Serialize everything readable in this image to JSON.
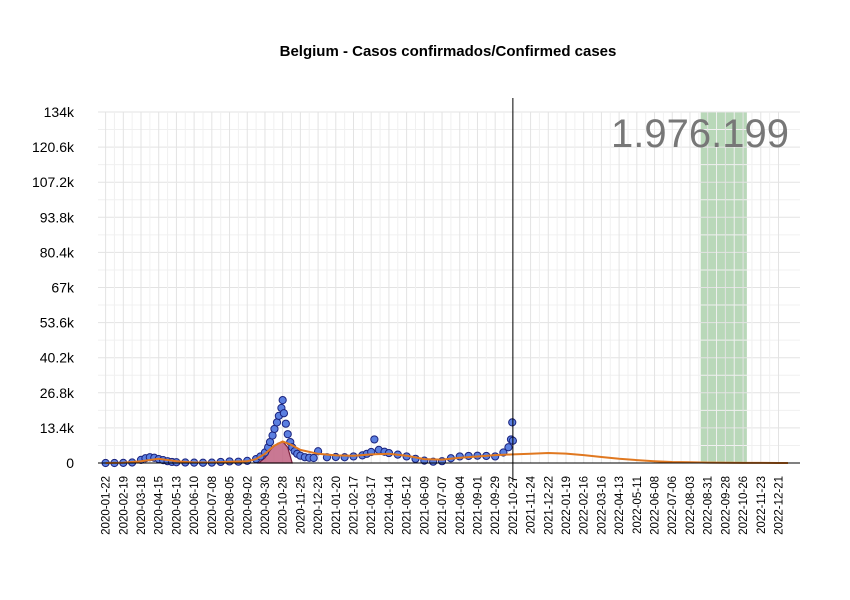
{
  "chart_data": {
    "type": "scatter",
    "title": "Belgium - Casos confirmados/Confirmed cases",
    "xlabel": "",
    "ylabel": "",
    "total_label": "1.976.199",
    "ylim": [
      0,
      134000
    ],
    "y_ticks": [
      {
        "value": 0,
        "label": "0"
      },
      {
        "value": 13400,
        "label": "13.4k"
      },
      {
        "value": 26800,
        "label": "26.8k"
      },
      {
        "value": 40200,
        "label": "40.2k"
      },
      {
        "value": 53600,
        "label": "53.6k"
      },
      {
        "value": 67000,
        "label": "67k"
      },
      {
        "value": 80400,
        "label": "80.4k"
      },
      {
        "value": 93800,
        "label": "93.8k"
      },
      {
        "value": 107200,
        "label": "107.2k"
      },
      {
        "value": 120600,
        "label": "120.6k"
      },
      {
        "value": 134000,
        "label": "134k"
      }
    ],
    "x_range": [
      "2020-01-10",
      "2023-01-24"
    ],
    "x_ticks": [
      "2020-01-22",
      "2020-02-19",
      "2020-03-18",
      "2020-04-15",
      "2020-05-13",
      "2020-06-10",
      "2020-07-08",
      "2020-08-05",
      "2020-09-02",
      "2020-09-30",
      "2020-10-28",
      "2020-11-25",
      "2020-12-23",
      "2021-01-20",
      "2021-02-17",
      "2021-03-17",
      "2021-04-14",
      "2021-05-12",
      "2021-06-09",
      "2021-07-07",
      "2021-08-04",
      "2021-09-01",
      "2021-09-29",
      "2021-10-27",
      "2021-11-24",
      "2021-12-22",
      "2022-01-19",
      "2022-02-16",
      "2022-03-16",
      "2022-04-13",
      "2022-05-11",
      "2022-06-08",
      "2022-07-06",
      "2022-08-03",
      "2022-08-31",
      "2022-09-28",
      "2022-10-26",
      "2022-11-23",
      "2022-12-21"
    ],
    "vertical_line": "2021-10-27",
    "highlight_range": {
      "start": "2022-08-20",
      "end": "2022-11-01",
      "color": "#b9d8b9"
    },
    "series": [
      {
        "kind": "daily_cases_points",
        "color": "#5b7fe0",
        "edge_color": "#1a237e",
        "points": [
          [
            "2020-01-22",
            0
          ],
          [
            "2020-02-05",
            0
          ],
          [
            "2020-02-19",
            50
          ],
          [
            "2020-03-04",
            200
          ],
          [
            "2020-03-18",
            1200
          ],
          [
            "2020-03-25",
            1800
          ],
          [
            "2020-04-01",
            2200
          ],
          [
            "2020-04-08",
            2000
          ],
          [
            "2020-04-15",
            1500
          ],
          [
            "2020-04-22",
            1100
          ],
          [
            "2020-04-29",
            700
          ],
          [
            "2020-05-06",
            400
          ],
          [
            "2020-05-13",
            300
          ],
          [
            "2020-05-27",
            200
          ],
          [
            "2020-06-10",
            150
          ],
          [
            "2020-06-24",
            100
          ],
          [
            "2020-07-08",
            150
          ],
          [
            "2020-07-22",
            400
          ],
          [
            "2020-08-05",
            600
          ],
          [
            "2020-08-19",
            500
          ],
          [
            "2020-09-02",
            800
          ],
          [
            "2020-09-16",
            1500
          ],
          [
            "2020-09-23",
            2500
          ],
          [
            "2020-09-30",
            4000
          ],
          [
            "2020-10-05",
            6000
          ],
          [
            "2020-10-08",
            8000
          ],
          [
            "2020-10-12",
            10500
          ],
          [
            "2020-10-15",
            13000
          ],
          [
            "2020-10-19",
            15500
          ],
          [
            "2020-10-22",
            18000
          ],
          [
            "2020-10-26",
            21000
          ],
          [
            "2020-10-28",
            24000
          ],
          [
            "2020-10-30",
            19000
          ],
          [
            "2020-11-02",
            15000
          ],
          [
            "2020-11-05",
            11000
          ],
          [
            "2020-11-09",
            8000
          ],
          [
            "2020-11-12",
            6000
          ],
          [
            "2020-11-16",
            4500
          ],
          [
            "2020-11-20",
            3500
          ],
          [
            "2020-11-25",
            2800
          ],
          [
            "2020-12-02",
            2200
          ],
          [
            "2020-12-09",
            2000
          ],
          [
            "2020-12-16",
            1900
          ],
          [
            "2020-12-23",
            4500
          ],
          [
            "2021-01-06",
            2200
          ],
          [
            "2021-01-20",
            2300
          ],
          [
            "2021-02-03",
            2200
          ],
          [
            "2021-02-17",
            2500
          ],
          [
            "2021-03-03",
            2900
          ],
          [
            "2021-03-10",
            3500
          ],
          [
            "2021-03-17",
            4200
          ],
          [
            "2021-03-22",
            9000
          ],
          [
            "2021-03-29",
            5000
          ],
          [
            "2021-04-07",
            4300
          ],
          [
            "2021-04-14",
            3800
          ],
          [
            "2021-04-28",
            3200
          ],
          [
            "2021-05-12",
            2500
          ],
          [
            "2021-05-26",
            1600
          ],
          [
            "2021-06-09",
            900
          ],
          [
            "2021-06-23",
            500
          ],
          [
            "2021-07-07",
            700
          ],
          [
            "2021-07-21",
            1800
          ],
          [
            "2021-08-04",
            2500
          ],
          [
            "2021-08-18",
            2700
          ],
          [
            "2021-09-01",
            2800
          ],
          [
            "2021-09-15",
            2700
          ],
          [
            "2021-09-29",
            2500
          ],
          [
            "2021-10-12",
            4000
          ],
          [
            "2021-10-20",
            6000
          ],
          [
            "2021-10-24",
            9000
          ],
          [
            "2021-10-26",
            15500
          ],
          [
            "2021-10-27",
            8500
          ]
        ]
      },
      {
        "kind": "moving_average_area",
        "color": "#c06080",
        "edge_color": "#7a1f3d",
        "points": [
          [
            "2020-09-20",
            0
          ],
          [
            "2020-09-30",
            2000
          ],
          [
            "2020-10-10",
            5500
          ],
          [
            "2020-10-20",
            7500
          ],
          [
            "2020-10-28",
            8200
          ],
          [
            "2020-11-05",
            6000
          ],
          [
            "2020-11-12",
            0
          ]
        ]
      },
      {
        "kind": "trend_line",
        "color": "#e07820",
        "points": [
          [
            "2020-01-22",
            0
          ],
          [
            "2020-02-19",
            100
          ],
          [
            "2020-03-18",
            700
          ],
          [
            "2020-04-15",
            1600
          ],
          [
            "2020-05-13",
            700
          ],
          [
            "2020-06-10",
            200
          ],
          [
            "2020-07-08",
            200
          ],
          [
            "2020-08-05",
            500
          ],
          [
            "2020-09-02",
            700
          ],
          [
            "2020-09-16",
            1500
          ],
          [
            "2020-09-30",
            3500
          ],
          [
            "2020-10-14",
            6500
          ],
          [
            "2020-10-28",
            8200
          ],
          [
            "2020-11-10",
            7000
          ],
          [
            "2020-11-25",
            5000
          ],
          [
            "2020-12-23",
            3500
          ],
          [
            "2021-01-20",
            2900
          ],
          [
            "2021-02-17",
            2800
          ],
          [
            "2021-03-17",
            3300
          ],
          [
            "2021-04-14",
            3500
          ],
          [
            "2021-05-12",
            2800
          ],
          [
            "2021-06-09",
            1500
          ],
          [
            "2021-07-07",
            1300
          ],
          [
            "2021-08-04",
            2000
          ],
          [
            "2021-09-01",
            2500
          ],
          [
            "2021-09-29",
            3000
          ],
          [
            "2021-10-27",
            3300
          ],
          [
            "2021-11-24",
            3500
          ],
          [
            "2021-12-22",
            3800
          ],
          [
            "2022-01-19",
            3600
          ],
          [
            "2022-02-16",
            3000
          ],
          [
            "2022-03-16",
            2300
          ],
          [
            "2022-04-13",
            1600
          ],
          [
            "2022-05-11",
            1100
          ],
          [
            "2022-06-08",
            700
          ],
          [
            "2022-07-06",
            400
          ],
          [
            "2022-08-03",
            250
          ],
          [
            "2022-08-31",
            150
          ],
          [
            "2022-09-28",
            80
          ],
          [
            "2022-10-26",
            40
          ],
          [
            "2022-11-23",
            20
          ],
          [
            "2022-12-21",
            10
          ],
          [
            "2023-01-05",
            5
          ]
        ]
      }
    ]
  }
}
